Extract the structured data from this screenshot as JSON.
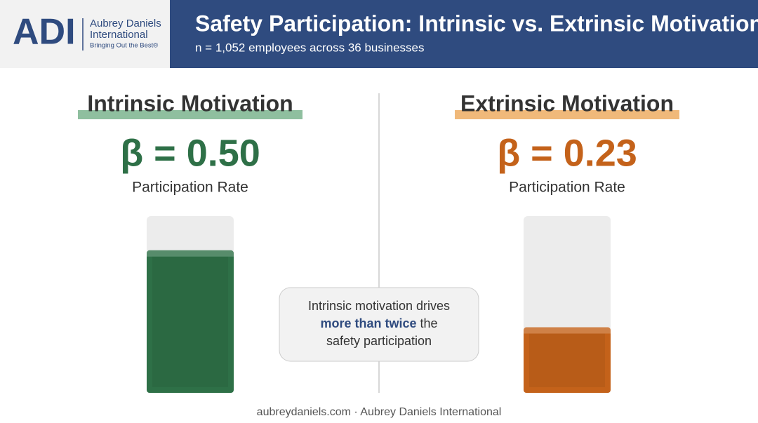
{
  "header": {
    "logo": "ADI",
    "company_line_1": "Aubrey Daniels",
    "company_line_2": "International",
    "tagline": "Bringing Out the Best®"
  },
  "chart_data": {
    "type": "bar",
    "title": "Safety Participation: Intrinsic vs. Extrinsic Motivation",
    "subtitle": "n = 1,052 employees across 36 businesses",
    "categories": [
      "Intrinsic Motivation",
      "Extrinsic Motivation"
    ],
    "values": [
      0.5,
      0.23
    ],
    "value_labels": [
      "β = 0.50",
      "β = 0.23"
    ],
    "value_axis_label": "Participation Rate",
    "colors": [
      "#2e7047",
      "#c4621a"
    ],
    "ylim": [
      0,
      0.62
    ],
    "annotation": [
      "Intrinsic motivation drives",
      "more than twice",
      "the",
      "safety participation"
    ]
  },
  "footer": "aubreydaniels.com · Aubrey Daniels International"
}
